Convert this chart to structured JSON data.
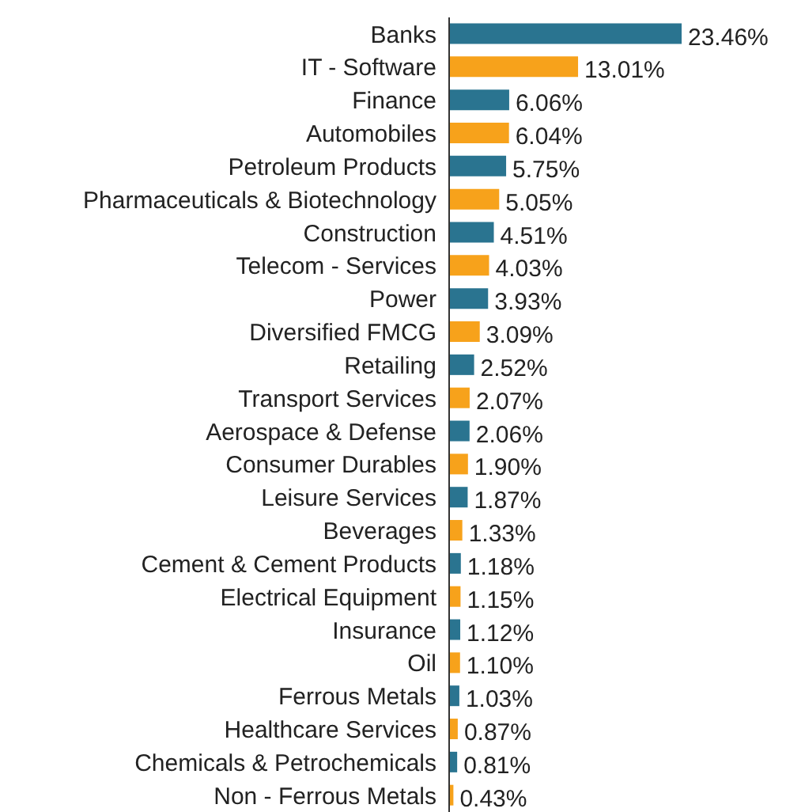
{
  "chart_data": {
    "type": "bar",
    "orientation": "horizontal",
    "categories": [
      "Banks",
      "IT - Software",
      "Finance",
      "Automobiles",
      "Petroleum Products",
      "Pharmaceuticals & Biotechnology",
      "Construction",
      "Telecom - Services",
      "Power",
      "Diversified FMCG",
      "Retailing",
      "Transport Services",
      "Aerospace & Defense",
      "Consumer Durables",
      "Leisure Services",
      "Beverages",
      "Cement & Cement Products",
      "Electrical Equipment",
      "Insurance",
      "Oil",
      "Ferrous Metals",
      "Healthcare Services",
      "Chemicals & Petrochemicals",
      "Non - Ferrous Metals"
    ],
    "values": [
      23.46,
      13.01,
      6.06,
      6.04,
      5.75,
      5.05,
      4.51,
      4.03,
      3.93,
      3.09,
      2.52,
      2.07,
      2.06,
      1.9,
      1.87,
      1.33,
      1.18,
      1.15,
      1.12,
      1.1,
      1.03,
      0.87,
      0.81,
      0.43
    ],
    "value_labels": [
      "23.46%",
      "13.01%",
      "6.06%",
      "6.04%",
      "5.75%",
      "5.05%",
      "4.51%",
      "4.03%",
      "3.93%",
      "3.09%",
      "2.52%",
      "2.07%",
      "2.06%",
      "1.90%",
      "1.87%",
      "1.33%",
      "1.18%",
      "1.15%",
      "1.12%",
      "1.10%",
      "1.03%",
      "0.87%",
      "0.81%",
      "0.43%"
    ],
    "colors": [
      "#2a7490",
      "#f7a21b",
      "#2a7490",
      "#f7a21b",
      "#2a7490",
      "#f7a21b",
      "#2a7490",
      "#f7a21b",
      "#2a7490",
      "#f7a21b",
      "#2a7490",
      "#f7a21b",
      "#2a7490",
      "#f7a21b",
      "#2a7490",
      "#f7a21b",
      "#2a7490",
      "#f7a21b",
      "#2a7490",
      "#f7a21b",
      "#2a7490",
      "#f7a21b",
      "#2a7490",
      "#f7a21b"
    ]
  }
}
